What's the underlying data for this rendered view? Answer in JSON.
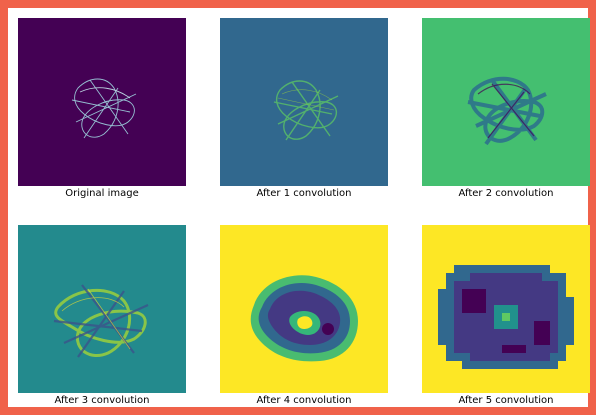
{
  "border_color": "#f0624a",
  "panels": [
    {
      "caption": "Original image",
      "background": "#440154",
      "pattern": "thin-star-lines"
    },
    {
      "caption": "After 1 convolution",
      "background": "#31688e",
      "pattern": "blurred-star-lines"
    },
    {
      "caption": "After 2 convolution",
      "background": "#3fbc73",
      "pattern": "dark-star-band"
    },
    {
      "caption": "After 3 convolution",
      "background": "#21918c",
      "pattern": "textured-star-band"
    },
    {
      "caption": "After 4 convolution",
      "background": "#fde725",
      "pattern": "dark-blob-with-light-core"
    },
    {
      "caption": "After 5 convolution",
      "background": "#fde725",
      "pattern": "pixelated-dark-blob"
    }
  ]
}
